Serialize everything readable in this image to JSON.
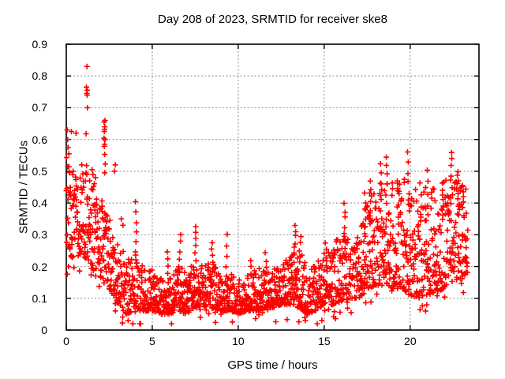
{
  "chart_data": {
    "type": "scatter",
    "title": "Day 208 of 2023, SRMTID for receiver ske8",
    "xlabel": "GPS time / hours",
    "ylabel": "SRMTID / TECUs",
    "xlim": [
      0,
      24
    ],
    "ylim": [
      0,
      0.9
    ],
    "xticks": [
      0,
      5,
      10,
      15,
      20
    ],
    "yticks": [
      0,
      0.1,
      0.2,
      0.3,
      0.4,
      0.5,
      0.6,
      0.7,
      0.8,
      0.9
    ],
    "xtick_labels": [
      "0",
      "5",
      "10",
      "15",
      "20"
    ],
    "ytick_labels": [
      "0",
      "0.1",
      "0.2",
      "0.3",
      "0.4",
      "0.5",
      "0.6",
      "0.7",
      "0.8",
      "0.9"
    ],
    "grid": true,
    "grid_style": "dotted",
    "legend": "none",
    "marker": "plus",
    "marker_size_px": 7,
    "colors": {
      "points": "#ff0000",
      "axis": "#000000",
      "grid": "#a0a0a0",
      "background": "#ffffff",
      "text": "#000000"
    },
    "pattern_summary": "Dense diurnal U-shape: SRMTID high (0.2-0.65 TECU, outliers to 0.83) near 0-2 h, decaying to a low noisy band of 0.05-0.2 TECU between 4 and 16 h, then rising again after 17 h to 0.15-0.55 TECU until data ends near 23.3 h",
    "sampling": {
      "seed": 208,
      "point_count": 1900,
      "t_max": 23.35,
      "t_jitter": 0.012,
      "skew_break": 2.5,
      "skew_early": 1.15,
      "skew_late": 1.7,
      "below_rate": 0.03
    },
    "envelope": [
      [
        0.0,
        0.17,
        0.55
      ],
      [
        0.3,
        0.2,
        0.5
      ],
      [
        0.8,
        0.22,
        0.48
      ],
      [
        1.2,
        0.22,
        0.52
      ],
      [
        1.6,
        0.18,
        0.47
      ],
      [
        2.0,
        0.16,
        0.42
      ],
      [
        2.5,
        0.13,
        0.36
      ],
      [
        3.0,
        0.08,
        0.3
      ],
      [
        3.5,
        0.05,
        0.22
      ],
      [
        4.0,
        0.06,
        0.24
      ],
      [
        4.5,
        0.06,
        0.2
      ],
      [
        5.0,
        0.06,
        0.19
      ],
      [
        5.5,
        0.05,
        0.17
      ],
      [
        6.0,
        0.05,
        0.17
      ],
      [
        6.5,
        0.06,
        0.2
      ],
      [
        7.0,
        0.05,
        0.19
      ],
      [
        7.5,
        0.07,
        0.24
      ],
      [
        8.0,
        0.06,
        0.21
      ],
      [
        8.5,
        0.07,
        0.21
      ],
      [
        9.0,
        0.06,
        0.19
      ],
      [
        9.5,
        0.06,
        0.18
      ],
      [
        10.0,
        0.05,
        0.16
      ],
      [
        10.5,
        0.06,
        0.17
      ],
      [
        11.0,
        0.06,
        0.19
      ],
      [
        11.5,
        0.07,
        0.2
      ],
      [
        12.0,
        0.07,
        0.19
      ],
      [
        12.5,
        0.08,
        0.21
      ],
      [
        13.0,
        0.08,
        0.24
      ],
      [
        13.5,
        0.07,
        0.26
      ],
      [
        14.0,
        0.05,
        0.2
      ],
      [
        14.5,
        0.06,
        0.22
      ],
      [
        15.0,
        0.08,
        0.25
      ],
      [
        15.5,
        0.08,
        0.27
      ],
      [
        16.0,
        0.09,
        0.32
      ],
      [
        16.5,
        0.1,
        0.28
      ],
      [
        17.0,
        0.1,
        0.3
      ],
      [
        17.5,
        0.13,
        0.42
      ],
      [
        18.0,
        0.14,
        0.46
      ],
      [
        18.5,
        0.14,
        0.5
      ],
      [
        19.0,
        0.13,
        0.46
      ],
      [
        19.5,
        0.13,
        0.48
      ],
      [
        20.0,
        0.11,
        0.47
      ],
      [
        20.5,
        0.1,
        0.43
      ],
      [
        21.0,
        0.11,
        0.46
      ],
      [
        21.5,
        0.12,
        0.44
      ],
      [
        22.0,
        0.13,
        0.47
      ],
      [
        22.5,
        0.15,
        0.52
      ],
      [
        23.0,
        0.16,
        0.48
      ],
      [
        23.35,
        0.18,
        0.44
      ]
    ],
    "columns": [
      [
        2.25,
        0.5,
        0.66,
        7
      ],
      [
        4.05,
        0.25,
        0.4,
        6
      ],
      [
        5.9,
        0.18,
        0.25,
        4
      ],
      [
        6.6,
        0.2,
        0.3,
        5
      ],
      [
        7.5,
        0.22,
        0.33,
        6
      ],
      [
        8.5,
        0.19,
        0.28,
        5
      ],
      [
        9.3,
        0.2,
        0.3,
        4
      ],
      [
        10.7,
        0.17,
        0.22,
        3
      ],
      [
        11.6,
        0.18,
        0.24,
        4
      ],
      [
        13.3,
        0.24,
        0.33,
        6
      ],
      [
        13.6,
        0.22,
        0.3,
        4
      ],
      [
        15.1,
        0.22,
        0.28,
        3
      ],
      [
        16.2,
        0.28,
        0.4,
        6
      ],
      [
        17.4,
        0.3,
        0.43,
        6
      ],
      [
        17.7,
        0.33,
        0.47,
        7
      ],
      [
        18.3,
        0.38,
        0.52,
        6
      ],
      [
        18.6,
        0.4,
        0.55,
        6
      ],
      [
        19.3,
        0.35,
        0.47,
        4
      ],
      [
        19.9,
        0.4,
        0.56,
        6
      ],
      [
        20.6,
        0.35,
        0.46,
        4
      ],
      [
        21.0,
        0.36,
        0.5,
        5
      ],
      [
        21.9,
        0.35,
        0.46,
        4
      ],
      [
        22.4,
        0.42,
        0.56,
        7
      ],
      [
        22.8,
        0.36,
        0.5,
        5
      ],
      [
        23.1,
        0.3,
        0.45,
        4
      ]
    ],
    "outliers": [
      [
        1.2,
        0.83
      ],
      [
        1.17,
        0.765
      ],
      [
        1.22,
        0.755
      ],
      [
        1.19,
        0.745
      ],
      [
        1.21,
        0.74
      ],
      [
        1.23,
        0.7
      ],
      [
        0.05,
        0.63
      ],
      [
        0.3,
        0.625
      ],
      [
        0.57,
        0.62
      ],
      [
        1.15,
        0.618
      ],
      [
        0.08,
        0.6
      ],
      [
        0.1,
        0.575
      ],
      [
        0.15,
        0.555
      ],
      [
        2.2,
        0.655
      ],
      [
        2.24,
        0.64
      ],
      [
        2.21,
        0.625
      ],
      [
        2.26,
        0.6
      ],
      [
        2.23,
        0.585
      ],
      [
        0.4,
        0.5
      ],
      [
        0.9,
        0.52
      ],
      [
        1.5,
        0.505
      ],
      [
        1.55,
        0.49
      ],
      [
        1.7,
        0.48
      ],
      [
        2.8,
        0.5
      ],
      [
        2.85,
        0.52
      ],
      [
        3.2,
        0.35
      ],
      [
        3.3,
        0.33
      ],
      [
        3.6,
        0.03
      ],
      [
        7.8,
        0.04
      ],
      [
        9.0,
        0.05
      ],
      [
        13.9,
        0.03
      ],
      [
        20.9,
        0.06
      ]
    ]
  }
}
